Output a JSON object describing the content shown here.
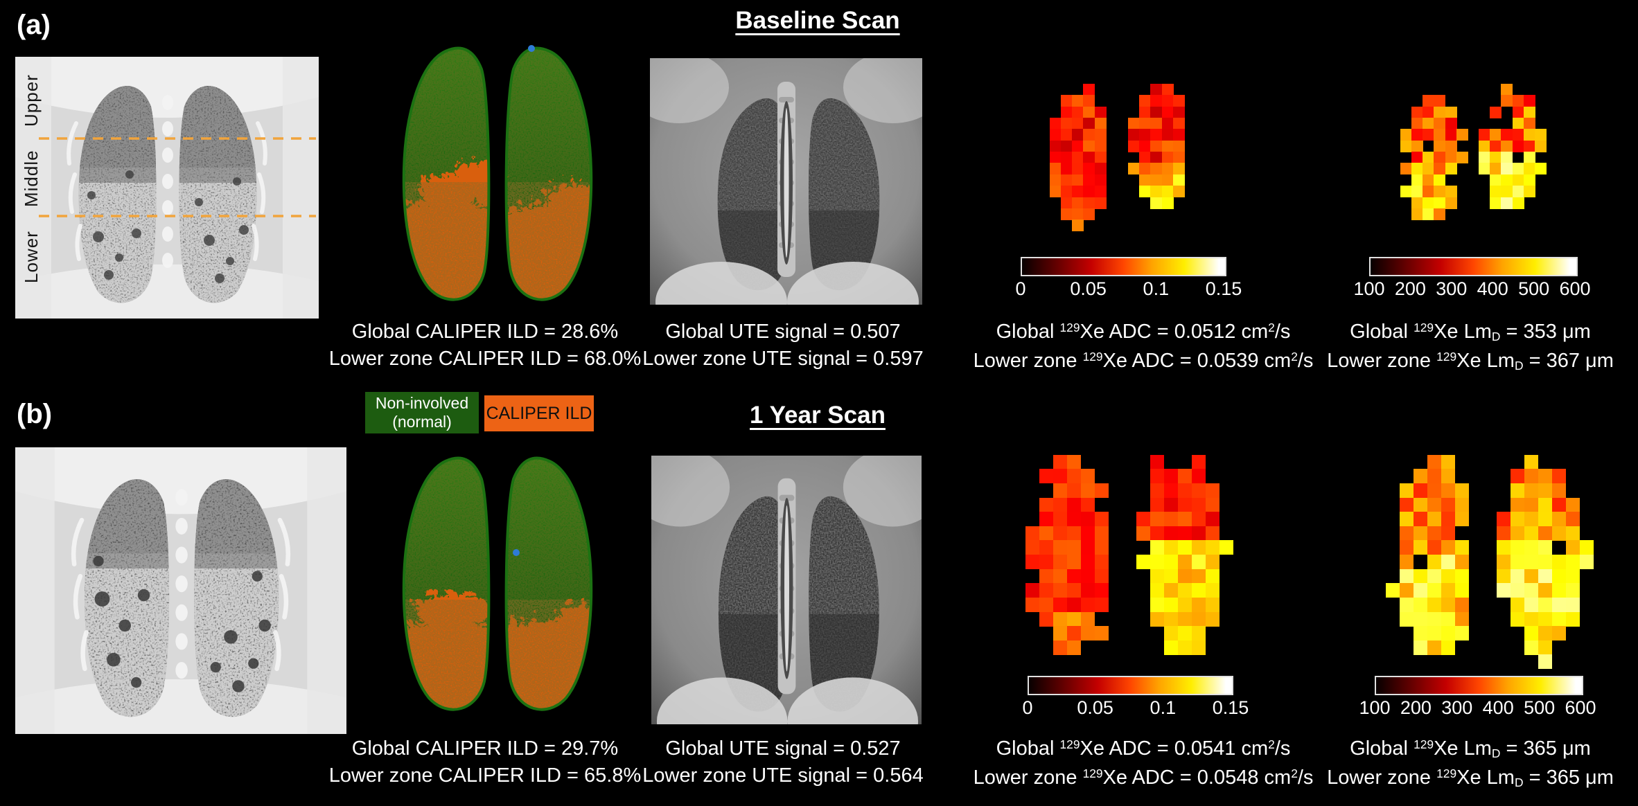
{
  "panels": [
    {
      "label": "(a)",
      "title": "Baseline Scan",
      "ct": {
        "zones": [
          "Upper",
          "Middle",
          "Lower"
        ],
        "zone_line_color": "#f1a43c"
      },
      "caliper": {
        "lines": [
          "Global CALIPER ILD = 28.6%",
          "Lower zone CALIPER ILD = 68.0%"
        ]
      },
      "ute": {
        "lines": [
          "Global UTE signal = 0.507",
          "Lower zone UTE signal = 0.597"
        ]
      },
      "adc": {
        "ticks": [
          "0",
          "0.05",
          "0.1",
          "0.15"
        ],
        "lines": [
          [
            {
              "t": "Global "
            },
            {
              "t": "129",
              "sup": true
            },
            {
              "t": "Xe ADC = 0.0512 cm"
            },
            {
              "t": "2",
              "sup": true
            },
            {
              "t": "/s"
            }
          ],
          [
            {
              "t": "Lower zone "
            },
            {
              "t": "129",
              "sup": true
            },
            {
              "t": "Xe ADC = 0.0539 cm"
            },
            {
              "t": "2",
              "sup": true
            },
            {
              "t": "/s"
            }
          ]
        ]
      },
      "lmd": {
        "ticks": [
          "100",
          "200",
          "300",
          "400",
          "500",
          "600"
        ],
        "lines": [
          [
            {
              "t": "Global "
            },
            {
              "t": "129",
              "sup": true
            },
            {
              "t": "Xe Lm"
            },
            {
              "t": "D",
              "sub": true
            },
            {
              "t": " = 353 μm"
            }
          ],
          [
            {
              "t": "Lower zone "
            },
            {
              "t": "129",
              "sup": true
            },
            {
              "t": "Xe Lm"
            },
            {
              "t": "D",
              "sub": true
            },
            {
              "t": " = 367 μm"
            }
          ]
        ]
      }
    },
    {
      "label": "(b)",
      "title": "1 Year Scan",
      "caliper": {
        "lines": [
          "Global CALIPER ILD = 29.7%",
          "Lower zone CALIPER ILD = 65.8%"
        ]
      },
      "ute": {
        "lines": [
          "Global UTE signal = 0.527",
          "Lower zone UTE signal = 0.564"
        ]
      },
      "adc": {
        "ticks": [
          "0",
          "0.05",
          "0.1",
          "0.15"
        ],
        "lines": [
          [
            {
              "t": "Global "
            },
            {
              "t": "129",
              "sup": true
            },
            {
              "t": "Xe ADC = 0.0541 cm"
            },
            {
              "t": "2",
              "sup": true
            },
            {
              "t": "/s"
            }
          ],
          [
            {
              "t": "Lower zone "
            },
            {
              "t": "129",
              "sup": true
            },
            {
              "t": "Xe ADC = 0.0548 cm"
            },
            {
              "t": "2",
              "sup": true
            },
            {
              "t": "/s"
            }
          ]
        ]
      },
      "lmd": {
        "ticks": [
          "100",
          "200",
          "300",
          "400",
          "500",
          "600"
        ],
        "lines": [
          [
            {
              "t": "Global "
            },
            {
              "t": "129",
              "sup": true
            },
            {
              "t": "Xe Lm"
            },
            {
              "t": "D",
              "sub": true
            },
            {
              "t": " = 365 μm"
            }
          ],
          [
            {
              "t": "Lower zone "
            },
            {
              "t": "129",
              "sup": true
            },
            {
              "t": "Xe Lm"
            },
            {
              "t": "D",
              "sub": true
            },
            {
              "t": " = 365 μm"
            }
          ]
        ]
      }
    }
  ],
  "legend": {
    "normal_line1": "Non-involved",
    "normal_line2": "(normal)",
    "ild_label": "CALIPER ILD",
    "normal_color": "#1d5c10",
    "ild_color": "#ed6315"
  }
}
